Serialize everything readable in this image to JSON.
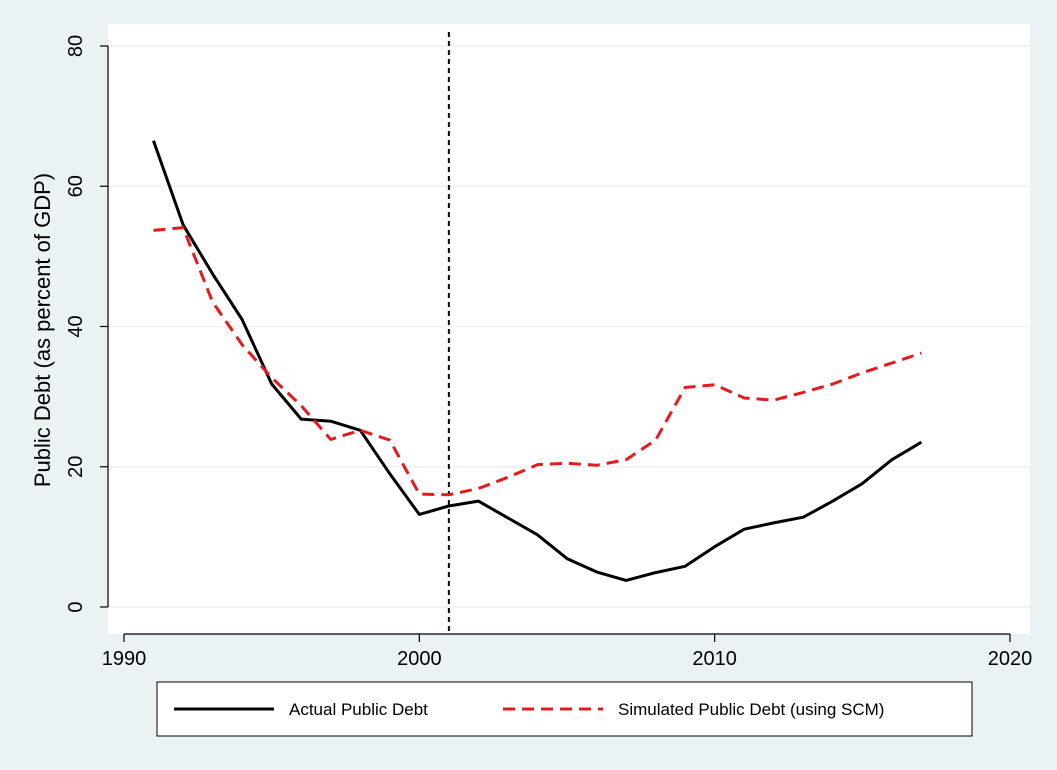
{
  "chart_data": {
    "type": "line",
    "title": "",
    "xlabel": "",
    "ylabel": "Public Debt (as percent of GDP)",
    "xlim": [
      1990,
      2020
    ],
    "ylim": [
      0,
      80
    ],
    "xticks": [
      1990,
      2000,
      2010,
      2020
    ],
    "yticks": [
      0,
      20,
      40,
      60,
      80
    ],
    "grid": "horizontal",
    "legend_position": "bottom",
    "vertical_line": {
      "x": 2001,
      "style": "dashed",
      "color": "#000000"
    },
    "series": [
      {
        "name": "Actual Public Debt",
        "color": "#000000",
        "style": "solid",
        "x": [
          1991,
          1992,
          1993,
          1994,
          1995,
          1996,
          1997,
          1998,
          1999,
          2000,
          2001,
          2002,
          2003,
          2004,
          2005,
          2006,
          2007,
          2008,
          2009,
          2010,
          2011,
          2012,
          2013,
          2014,
          2015,
          2016,
          2017
        ],
        "y": [
          66.5,
          54.5,
          47.5,
          41.0,
          31.8,
          26.8,
          26.5,
          25.2,
          19.0,
          13.2,
          14.4,
          15.1,
          12.7,
          10.3,
          6.9,
          5.0,
          3.8,
          4.9,
          5.8,
          8.6,
          11.1,
          12.0,
          12.8,
          15.1,
          17.6,
          21.0,
          23.5
        ]
      },
      {
        "name": "Simulated Public Debt (using SCM)",
        "color": "#e41a1c",
        "style": "dashed",
        "x": [
          1991,
          1992,
          1993,
          1994,
          1995,
          1996,
          1997,
          1998,
          1999,
          2000,
          2001,
          2002,
          2003,
          2004,
          2005,
          2006,
          2007,
          2008,
          2009,
          2010,
          2011,
          2012,
          2013,
          2014,
          2015,
          2016,
          2017
        ],
        "y": [
          53.7,
          54.1,
          43.5,
          37.4,
          32.7,
          28.7,
          23.9,
          25.2,
          23.8,
          16.1,
          16.0,
          16.9,
          18.5,
          20.3,
          20.5,
          20.2,
          21.0,
          23.8,
          31.3,
          31.7,
          29.8,
          29.5,
          30.6,
          31.8,
          33.4,
          34.8,
          36.2
        ]
      }
    ]
  }
}
